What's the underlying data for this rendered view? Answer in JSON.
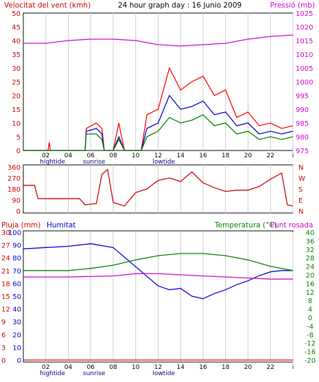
{
  "chart_data": [
    {
      "type": "line",
      "title": "24 hour graph day : 16 Junio 2009",
      "left_axis_label": "Velocitat del vent (kmh)",
      "right_axis_label": "Pressió (mb)",
      "x_ticks": [
        "02",
        "04",
        "06",
        "08",
        "10",
        "12",
        "14",
        "16",
        "18",
        "20",
        "22",
        "i"
      ],
      "y_ticks_left": [
        "0",
        "5",
        "10",
        "15",
        "20",
        "25",
        "30",
        "35",
        "40",
        "45",
        "50"
      ],
      "y_ticks_right": [
        "975",
        "980",
        "985",
        "990",
        "995",
        "1000",
        "1005",
        "1010",
        "1015",
        "1020",
        "1025"
      ],
      "ylim_left": [
        0,
        50
      ],
      "ylim_right": [
        975,
        1025
      ],
      "annotations": [
        {
          "label": "hightide",
          "x_hour": 2.6
        },
        {
          "label": "sunrise",
          "x_hour": 6.3
        },
        {
          "label": "lowtide",
          "x_hour": 12.5
        }
      ],
      "series": [
        {
          "axis": "right",
          "color": "#cc00cc",
          "points": [
            [
              0,
              1014
            ],
            [
              2,
              1014
            ],
            [
              4,
              1015
            ],
            [
              6,
              1015.5
            ],
            [
              8,
              1015.5
            ],
            [
              10,
              1015
            ],
            [
              12,
              1013.5
            ],
            [
              14,
              1013
            ],
            [
              16,
              1013.5
            ],
            [
              18,
              1014
            ],
            [
              20,
              1015.5
            ],
            [
              22,
              1016.5
            ],
            [
              24,
              1017
            ]
          ]
        },
        {
          "axis": "left",
          "color": "#ff0000",
          "points": [
            [
              0,
              0
            ],
            [
              2.2,
              0
            ],
            [
              2.3,
              3
            ],
            [
              2.4,
              0
            ],
            [
              5.5,
              0
            ],
            [
              5.6,
              8
            ],
            [
              6.5,
              10
            ],
            [
              7,
              8
            ],
            [
              7.2,
              0
            ],
            [
              8,
              0
            ],
            [
              8.5,
              10
            ],
            [
              9,
              0
            ],
            [
              10.5,
              0
            ],
            [
              11,
              13
            ],
            [
              12,
              15
            ],
            [
              13,
              30
            ],
            [
              14,
              22
            ],
            [
              15,
              25
            ],
            [
              16,
              27
            ],
            [
              17,
              20
            ],
            [
              18,
              22
            ],
            [
              19,
              12
            ],
            [
              20,
              14
            ],
            [
              21,
              9
            ],
            [
              22,
              10
            ],
            [
              23,
              8
            ],
            [
              24,
              9
            ]
          ]
        },
        {
          "axis": "left",
          "color": "#0000cc",
          "points": [
            [
              0,
              0
            ],
            [
              5.5,
              0
            ],
            [
              5.6,
              7
            ],
            [
              6.5,
              8
            ],
            [
              7,
              6
            ],
            [
              7.2,
              0
            ],
            [
              8,
              0
            ],
            [
              8.5,
              5
            ],
            [
              9,
              0
            ],
            [
              10.5,
              0
            ],
            [
              11,
              8
            ],
            [
              12,
              10
            ],
            [
              13,
              20
            ],
            [
              14,
              15
            ],
            [
              15,
              16
            ],
            [
              16,
              18
            ],
            [
              17,
              13
            ],
            [
              18,
              14
            ],
            [
              19,
              9
            ],
            [
              20,
              10
            ],
            [
              21,
              6
            ],
            [
              22,
              7
            ],
            [
              23,
              6
            ],
            [
              24,
              7
            ]
          ]
        },
        {
          "axis": "left",
          "color": "#007f00",
          "points": [
            [
              0,
              0
            ],
            [
              5.5,
              0
            ],
            [
              5.6,
              6
            ],
            [
              6.5,
              6
            ],
            [
              7,
              4
            ],
            [
              7.2,
              0
            ],
            [
              8,
              0
            ],
            [
              8.5,
              4
            ],
            [
              9,
              0
            ],
            [
              10.5,
              0
            ],
            [
              11,
              5
            ],
            [
              12,
              7
            ],
            [
              13,
              12
            ],
            [
              14,
              10
            ],
            [
              15,
              11
            ],
            [
              16,
              13
            ],
            [
              17,
              9
            ],
            [
              18,
              10
            ],
            [
              19,
              6
            ],
            [
              20,
              7
            ],
            [
              21,
              4
            ],
            [
              22,
              5
            ],
            [
              23,
              4
            ],
            [
              24,
              5
            ]
          ]
        }
      ]
    },
    {
      "type": "line",
      "y_ticks_left": [
        "0",
        "90",
        "180",
        "270",
        "360"
      ],
      "y_ticks_right": [
        "N",
        "E",
        "S",
        "W",
        "N"
      ],
      "ylim": [
        0,
        360
      ],
      "series": [
        {
          "color": "#cc0000",
          "points": [
            [
              0,
              210
            ],
            [
              1,
              210
            ],
            [
              1.3,
              100
            ],
            [
              5,
              100
            ],
            [
              5.5,
              50
            ],
            [
              6.5,
              60
            ],
            [
              7,
              300
            ],
            [
              7.5,
              340
            ],
            [
              8,
              70
            ],
            [
              9,
              40
            ],
            [
              10,
              150
            ],
            [
              11,
              180
            ],
            [
              12,
              250
            ],
            [
              13,
              270
            ],
            [
              14,
              240
            ],
            [
              15,
              320
            ],
            [
              16,
              230
            ],
            [
              17,
              190
            ],
            [
              18,
              160
            ],
            [
              19,
              170
            ],
            [
              20,
              170
            ],
            [
              21,
              200
            ],
            [
              22,
              260
            ],
            [
              23,
              310
            ],
            [
              23.5,
              50
            ],
            [
              24,
              40
            ]
          ]
        }
      ]
    },
    {
      "type": "line",
      "left_axis_label": "Pluja (mm)",
      "humidity_label": "Humitat",
      "right_axis_label": "Temperatura (°C)",
      "dewpoint_label": "Punt rosada",
      "x_ticks": [
        "02",
        "04",
        "06",
        "08",
        "10",
        "12",
        "14",
        "16",
        "18",
        "20",
        "22",
        "i"
      ],
      "y_ticks_rain": [
        "0",
        "3",
        "6",
        "9",
        "12",
        "15",
        "18",
        "21",
        "24",
        "27",
        "30"
      ],
      "y_ticks_humidity": [
        "0",
        "10",
        "20",
        "30",
        "40",
        "50",
        "60",
        "70",
        "80",
        "90",
        "100"
      ],
      "y_ticks_temp": [
        "-20",
        "-16",
        "-12",
        "-8",
        "-4",
        "0",
        "4",
        "8",
        "12",
        "16",
        "20",
        "24",
        "28",
        "32",
        "36",
        "40"
      ],
      "ylim_humidity": [
        0,
        100
      ],
      "ylim_temp": [
        -20,
        40
      ],
      "annotations": [
        {
          "label": "hightide",
          "x_hour": 2.6
        },
        {
          "label": "sunrise",
          "x_hour": 6.3
        },
        {
          "label": "lowtide",
          "x_hour": 12.5
        }
      ],
      "series": [
        {
          "name": "Humitat",
          "axis": "humidity",
          "color": "#0000cc",
          "points": [
            [
              0,
              87
            ],
            [
              2,
              88
            ],
            [
              4,
              89
            ],
            [
              6,
              91
            ],
            [
              8,
              88
            ],
            [
              10,
              73
            ],
            [
              12,
              58
            ],
            [
              13,
              55
            ],
            [
              14,
              56
            ],
            [
              15,
              50
            ],
            [
              16,
              48
            ],
            [
              17,
              52
            ],
            [
              18,
              55
            ],
            [
              19,
              59
            ],
            [
              20,
              62
            ],
            [
              21,
              66
            ],
            [
              22,
              69
            ],
            [
              23,
              70
            ],
            [
              24,
              70
            ]
          ]
        },
        {
          "name": "Temperatura (°C)",
          "axis": "temp",
          "color": "#007f00",
          "points": [
            [
              0,
              22
            ],
            [
              2,
              22
            ],
            [
              4,
              22
            ],
            [
              6,
              23
            ],
            [
              8,
              24.5
            ],
            [
              10,
              27
            ],
            [
              12,
              29
            ],
            [
              14,
              30
            ],
            [
              16,
              30
            ],
            [
              18,
              29
            ],
            [
              20,
              27
            ],
            [
              22,
              24
            ],
            [
              24,
              22
            ]
          ]
        },
        {
          "name": "Punt rosada",
          "axis": "temp",
          "color": "#cc00cc",
          "points": [
            [
              0,
              19
            ],
            [
              4,
              19
            ],
            [
              8,
              19.5
            ],
            [
              10,
              20.5
            ],
            [
              12,
              20.5
            ],
            [
              14,
              20
            ],
            [
              16,
              19.5
            ],
            [
              18,
              19
            ],
            [
              20,
              18.5
            ],
            [
              22,
              18
            ],
            [
              24,
              18
            ]
          ]
        },
        {
          "name": "Pluja (mm)",
          "axis": "rain",
          "color": "#ff0000",
          "points": [
            [
              0,
              0
            ],
            [
              24,
              0
            ]
          ]
        }
      ]
    }
  ]
}
